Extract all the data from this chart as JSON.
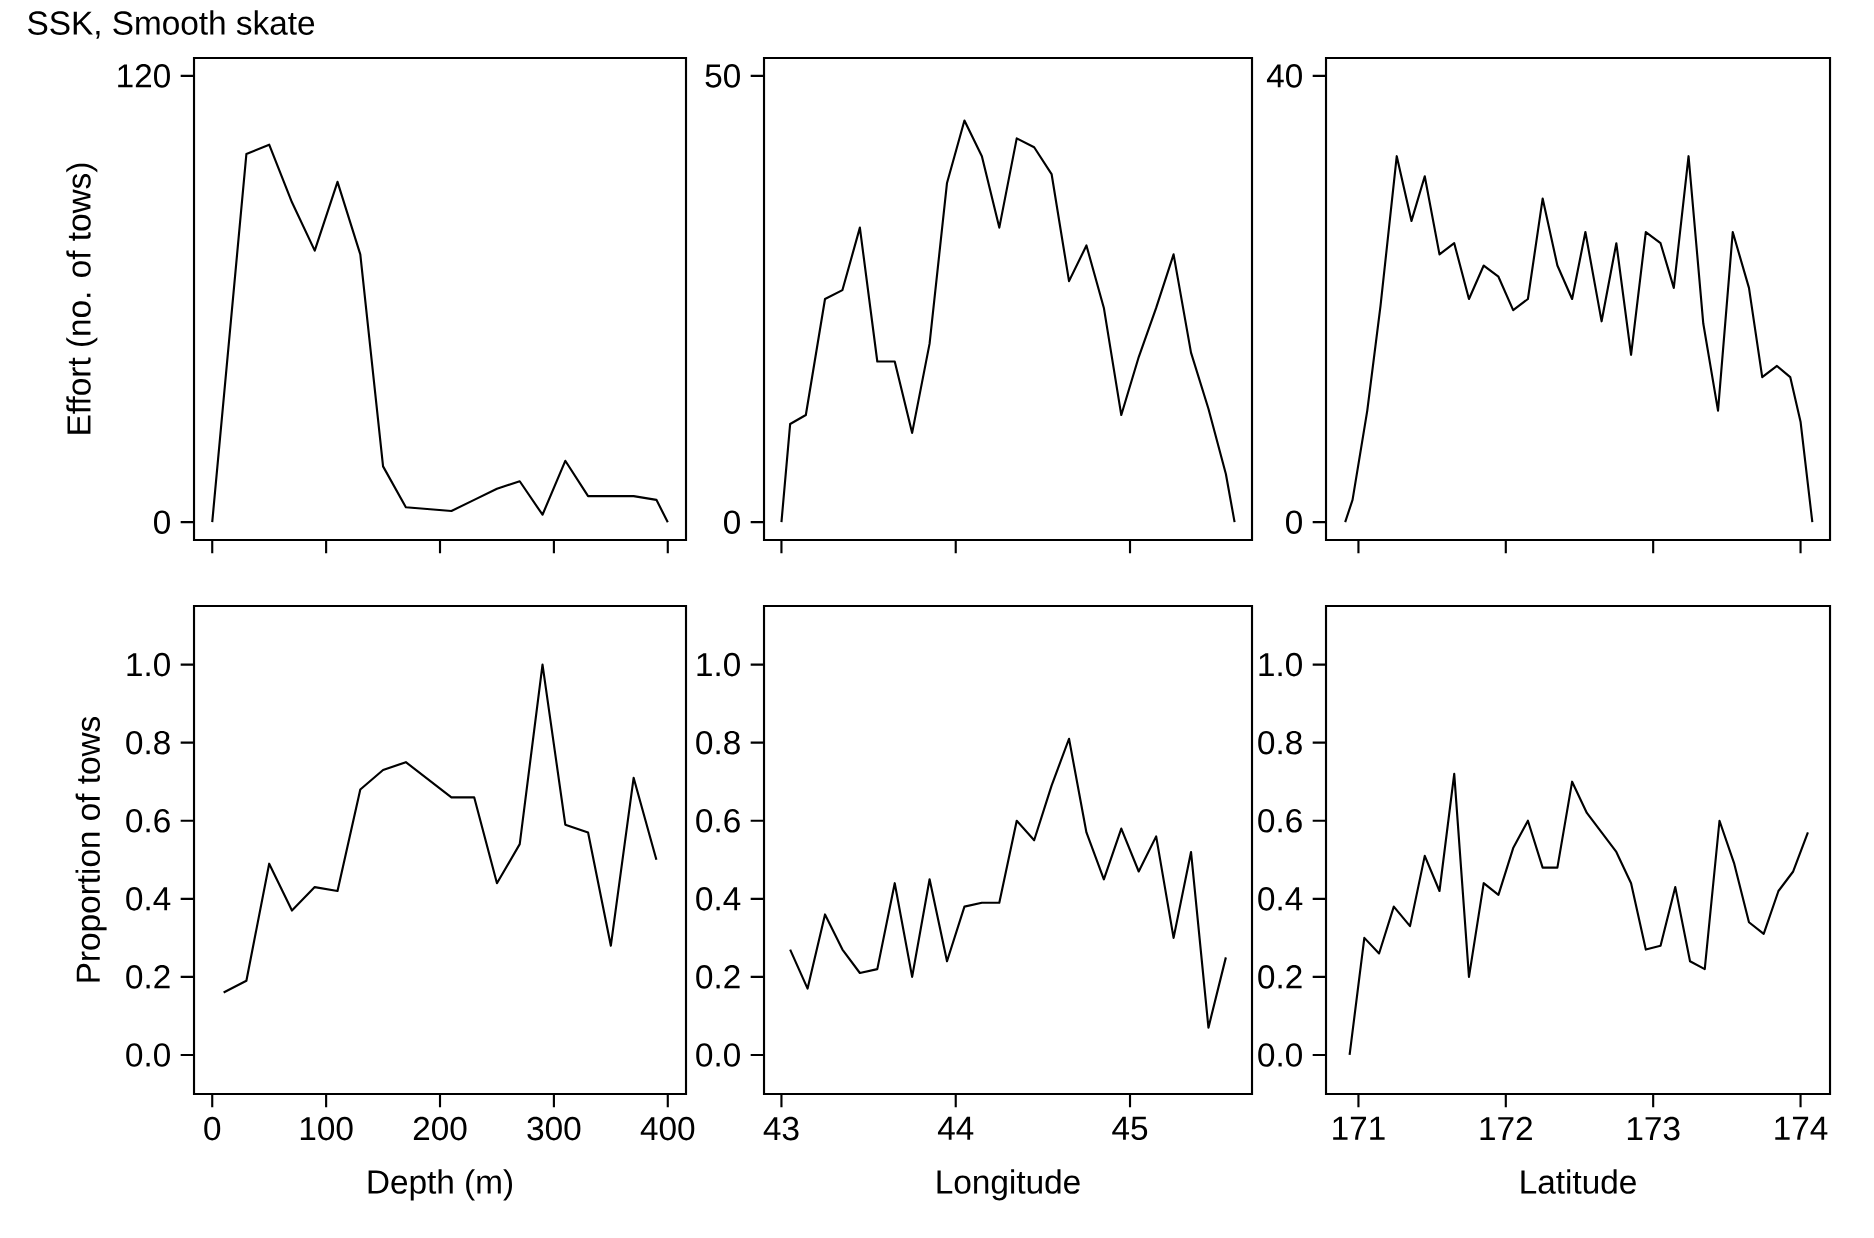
{
  "chart_data": [
    {
      "type": "line",
      "title": "SSK, Smooth skate",
      "ylabel": "Effort (no. of tows)",
      "color": "#000000",
      "xlim": [
        -16,
        416
      ],
      "ylim": [
        -4.8,
        124.8
      ],
      "xticks": [
        0,
        100,
        200,
        300,
        400
      ],
      "yticks": [
        0,
        120
      ],
      "tick_labels": "y",
      "x": [
        0,
        30,
        50,
        70,
        90,
        110,
        130,
        150,
        170,
        210,
        230,
        250,
        270,
        290,
        310,
        330,
        350,
        370,
        390,
        400
      ],
      "values": [
        0,
        99,
        101.5,
        86,
        73,
        91.5,
        72,
        15,
        4,
        3,
        6,
        9,
        11,
        2,
        16.5,
        7,
        7,
        7,
        6,
        0
      ]
    },
    {
      "type": "line",
      "color": "#000000",
      "xlim": [
        42.9,
        45.7
      ],
      "ylim": [
        -2,
        52
      ],
      "xticks": [
        43,
        44,
        45
      ],
      "yticks": [
        0,
        50
      ],
      "tick_labels": "y",
      "x": [
        43.0,
        43.05,
        43.14,
        43.25,
        43.35,
        43.45,
        43.55,
        43.65,
        43.75,
        43.85,
        43.95,
        44.05,
        44.15,
        44.25,
        44.35,
        44.45,
        44.55,
        44.65,
        44.75,
        44.85,
        44.95,
        45.05,
        45.15,
        45.25,
        45.35,
        45.45,
        45.55,
        45.6
      ],
      "values": [
        0,
        11,
        12,
        25,
        26,
        33,
        18,
        18,
        10,
        20,
        38,
        45,
        41,
        33,
        43,
        42,
        39,
        27,
        31,
        24,
        12,
        18.5,
        24,
        30,
        19,
        12.7,
        5.4,
        0
      ]
    },
    {
      "type": "line",
      "color": "#000000",
      "xlim": [
        170.78,
        174.2
      ],
      "ylim": [
        -1.6,
        41.6
      ],
      "xticks": [
        171,
        172,
        173,
        174
      ],
      "yticks": [
        0,
        40
      ],
      "tick_labels": "y",
      "x": [
        170.91,
        170.96,
        171.06,
        171.15,
        171.26,
        171.36,
        171.45,
        171.55,
        171.65,
        171.75,
        171.85,
        171.95,
        172.05,
        172.15,
        172.25,
        172.35,
        172.45,
        172.54,
        172.65,
        172.75,
        172.85,
        172.95,
        173.05,
        173.14,
        173.24,
        173.34,
        173.44,
        173.54,
        173.65,
        173.74,
        173.84,
        173.93,
        174.0,
        174.08
      ],
      "values": [
        0,
        2,
        10,
        19.4,
        32.8,
        27,
        31,
        24,
        25,
        20,
        23,
        22,
        19,
        20,
        29,
        23,
        20,
        26,
        18,
        25,
        15,
        26,
        25,
        21,
        32.8,
        17.8,
        10,
        26,
        21,
        13,
        14,
        13,
        9,
        0
      ]
    },
    {
      "type": "line",
      "xlabel": "Depth (m)",
      "ylabel": "Proportion of tows",
      "color": "#000000",
      "xlim": [
        -16,
        416
      ],
      "ylim": [
        -0.1,
        1.15
      ],
      "xticks": [
        0,
        100,
        200,
        300,
        400
      ],
      "yticks": [
        {
          "value": 0,
          "label": "0.0"
        },
        {
          "value": 0.2,
          "label": "0.2"
        },
        {
          "value": 0.4,
          "label": "0.4"
        },
        {
          "value": 0.6,
          "label": "0.6"
        },
        {
          "value": 0.8,
          "label": "0.8"
        },
        {
          "value": 1,
          "label": "1.0"
        }
      ],
      "x": [
        10,
        30,
        50,
        70,
        90,
        110,
        130,
        150,
        170,
        210,
        230,
        250,
        270,
        290,
        310,
        330,
        350,
        370,
        390
      ],
      "values": [
        0.16,
        0.19,
        0.49,
        0.37,
        0.43,
        0.42,
        0.68,
        0.73,
        0.75,
        0.66,
        0.66,
        0.44,
        0.54,
        1.0,
        0.59,
        0.57,
        0.28,
        0.71,
        0.5
      ]
    },
    {
      "type": "line",
      "xlabel": "Longitude",
      "color": "#000000",
      "xlim": [
        42.9,
        45.7
      ],
      "ylim": [
        -0.1,
        1.15
      ],
      "xticks": [
        43,
        44,
        45
      ],
      "yticks": [
        {
          "value": 0,
          "label": "0.0"
        },
        {
          "value": 0.2,
          "label": "0.2"
        },
        {
          "value": 0.4,
          "label": "0.4"
        },
        {
          "value": 0.6,
          "label": "0.6"
        },
        {
          "value": 0.8,
          "label": "0.8"
        },
        {
          "value": 1,
          "label": "1.0"
        }
      ],
      "x": [
        43.05,
        43.15,
        43.25,
        43.35,
        43.45,
        43.55,
        43.65,
        43.75,
        43.85,
        43.95,
        44.05,
        44.15,
        44.25,
        44.35,
        44.45,
        44.55,
        44.65,
        44.75,
        44.85,
        44.95,
        45.05,
        45.15,
        45.25,
        45.35,
        45.45,
        45.55
      ],
      "values": [
        0.27,
        0.17,
        0.36,
        0.27,
        0.21,
        0.22,
        0.44,
        0.2,
        0.45,
        0.24,
        0.38,
        0.39,
        0.39,
        0.6,
        0.55,
        0.69,
        0.81,
        0.57,
        0.45,
        0.58,
        0.47,
        0.56,
        0.3,
        0.52,
        0.07,
        0.25
      ]
    },
    {
      "type": "line",
      "xlabel": "Latitude",
      "color": "#000000",
      "xlim": [
        170.78,
        174.2
      ],
      "ylim": [
        -0.1,
        1.15
      ],
      "xticks": [
        171,
        172,
        173,
        174
      ],
      "yticks": [
        {
          "value": 0,
          "label": "0.0"
        },
        {
          "value": 0.2,
          "label": "0.2"
        },
        {
          "value": 0.4,
          "label": "0.4"
        },
        {
          "value": 0.6,
          "label": "0.6"
        },
        {
          "value": 0.8,
          "label": "0.8"
        },
        {
          "value": 1,
          "label": "1.0"
        }
      ],
      "x": [
        170.94,
        171.04,
        171.14,
        171.24,
        171.35,
        171.45,
        171.55,
        171.65,
        171.75,
        171.85,
        171.95,
        172.05,
        172.15,
        172.25,
        172.35,
        172.45,
        172.55,
        172.65,
        172.75,
        172.85,
        172.95,
        173.05,
        173.15,
        173.25,
        173.35,
        173.45,
        173.55,
        173.65,
        173.75,
        173.85,
        173.95,
        174.05
      ],
      "values": [
        0,
        0.3,
        0.26,
        0.38,
        0.33,
        0.51,
        0.42,
        0.72,
        0.2,
        0.44,
        0.41,
        0.53,
        0.6,
        0.48,
        0.48,
        0.7,
        0.62,
        0.57,
        0.52,
        0.44,
        0.27,
        0.28,
        0.43,
        0.24,
        0.22,
        0.6,
        0.49,
        0.34,
        0.31,
        0.42,
        0.47,
        0.57
      ]
    }
  ]
}
